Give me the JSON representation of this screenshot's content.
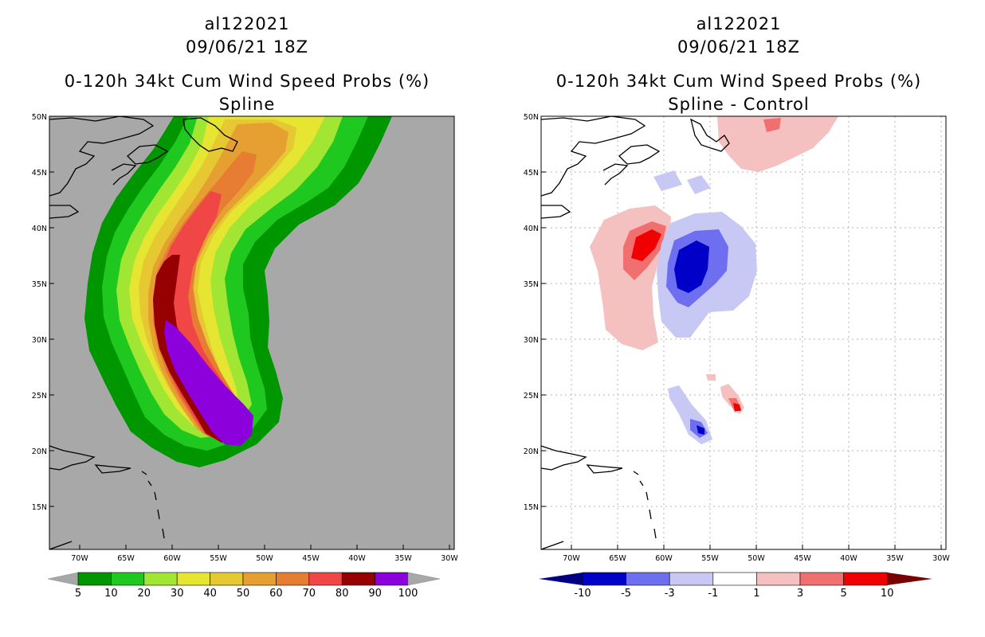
{
  "left_panel": {
    "title_line1": "al122021",
    "title_line2": "09/06/21 18Z",
    "title_line3": "0-120h 34kt Cum Wind Speed Probs (%)",
    "title_line4": "Spline",
    "colorbar": {
      "labels": [
        "5",
        "10",
        "20",
        "30",
        "40",
        "50",
        "60",
        "70",
        "80",
        "90",
        "100"
      ],
      "colors": [
        "#009600",
        "#1ec81e",
        "#a0e632",
        "#e6e632",
        "#e6c832",
        "#e6a032",
        "#e67d32",
        "#f04646",
        "#960000",
        "#8c00dc"
      ]
    }
  },
  "right_panel": {
    "title_line1": "al122021",
    "title_line2": "09/06/21 18Z",
    "title_line3": "0-120h 34kt Cum Wind Speed Probs (%)",
    "title_line4": "Spline - Control",
    "colorbar": {
      "labels": [
        "-10",
        "-5",
        "-3",
        "-1",
        "1",
        "3",
        "5",
        "10"
      ],
      "colors": [
        "#0000c8",
        "#6e6ef0",
        "#c8c8f5",
        "#ffffff",
        "#f5c0c0",
        "#f07070",
        "#f00000"
      ]
    }
  },
  "axes": {
    "lat_labels": [
      "50N",
      "45N",
      "40N",
      "35N",
      "30N",
      "25N",
      "20N",
      "15N"
    ],
    "lon_labels": [
      "70W",
      "65W",
      "60W",
      "55W",
      "50W",
      "45W",
      "40W",
      "35W",
      "30W"
    ]
  },
  "colors": {
    "ocean_gray": "#a8a8a8",
    "grid": "#b4b4b4"
  }
}
